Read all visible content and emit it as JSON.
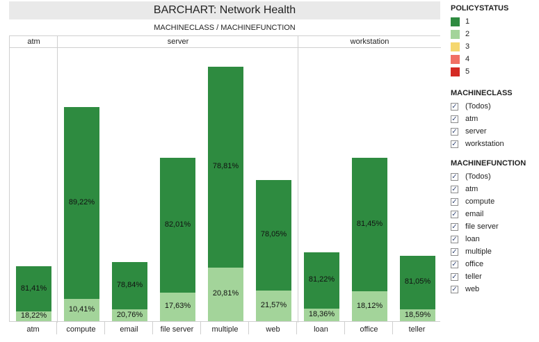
{
  "title": "BARCHART: Network Health",
  "subtitle": "MACHINECLASS  /  MACHINEFUNCTION",
  "chart_data": {
    "type": "bar",
    "stacked": true,
    "groups": [
      {
        "name": "atm",
        "categories": [
          "atm"
        ]
      },
      {
        "name": "server",
        "categories": [
          "compute",
          "email",
          "file server",
          "multiple",
          "web"
        ]
      },
      {
        "name": "workstation",
        "categories": [
          "loan",
          "office",
          "teller"
        ]
      }
    ],
    "categories": [
      "atm",
      "compute",
      "email",
      "file server",
      "multiple",
      "web",
      "loan",
      "office",
      "teller"
    ],
    "series": [
      {
        "name": "1",
        "color": "#2e8b40",
        "labels": [
          "81,41%",
          "89,22%",
          "78,84%",
          "82,01%",
          "78,81%",
          "78,05%",
          "81,22%",
          "81,45%",
          "81,05%"
        ]
      },
      {
        "name": "2",
        "color": "#a3d49a",
        "labels": [
          "18,22%",
          "10,41%",
          "20,76%",
          "17,63%",
          "20,81%",
          "21,57%",
          "18,36%",
          "18,12%",
          "18,59%"
        ]
      },
      {
        "name": "3",
        "color": "#f5d76e"
      },
      {
        "name": "4",
        "color": "#f17064"
      },
      {
        "name": "5",
        "color": "#d42a24"
      }
    ],
    "totals": [
      81,
      314,
      88,
      240,
      374,
      208,
      102,
      240,
      97
    ],
    "ylim": [
      0,
      400
    ],
    "legend_position": "right"
  },
  "legend": {
    "policystatus_title": "POLICYSTATUS",
    "policystatus_items": [
      {
        "label": "1",
        "color": "#2e8b40"
      },
      {
        "label": "2",
        "color": "#a3d49a"
      },
      {
        "label": "3",
        "color": "#f5d76e"
      },
      {
        "label": "4",
        "color": "#f17064"
      },
      {
        "label": "5",
        "color": "#d42a24"
      }
    ],
    "machineclass_title": "MACHINECLASS",
    "machineclass_items": [
      "(Todos)",
      "atm",
      "server",
      "workstation"
    ],
    "machinefunction_title": "MACHINEFUNCTION",
    "machinefunction_items": [
      "(Todos)",
      "atm",
      "compute",
      "email",
      "file server",
      "loan",
      "multiple",
      "office",
      "teller",
      "web"
    ]
  }
}
